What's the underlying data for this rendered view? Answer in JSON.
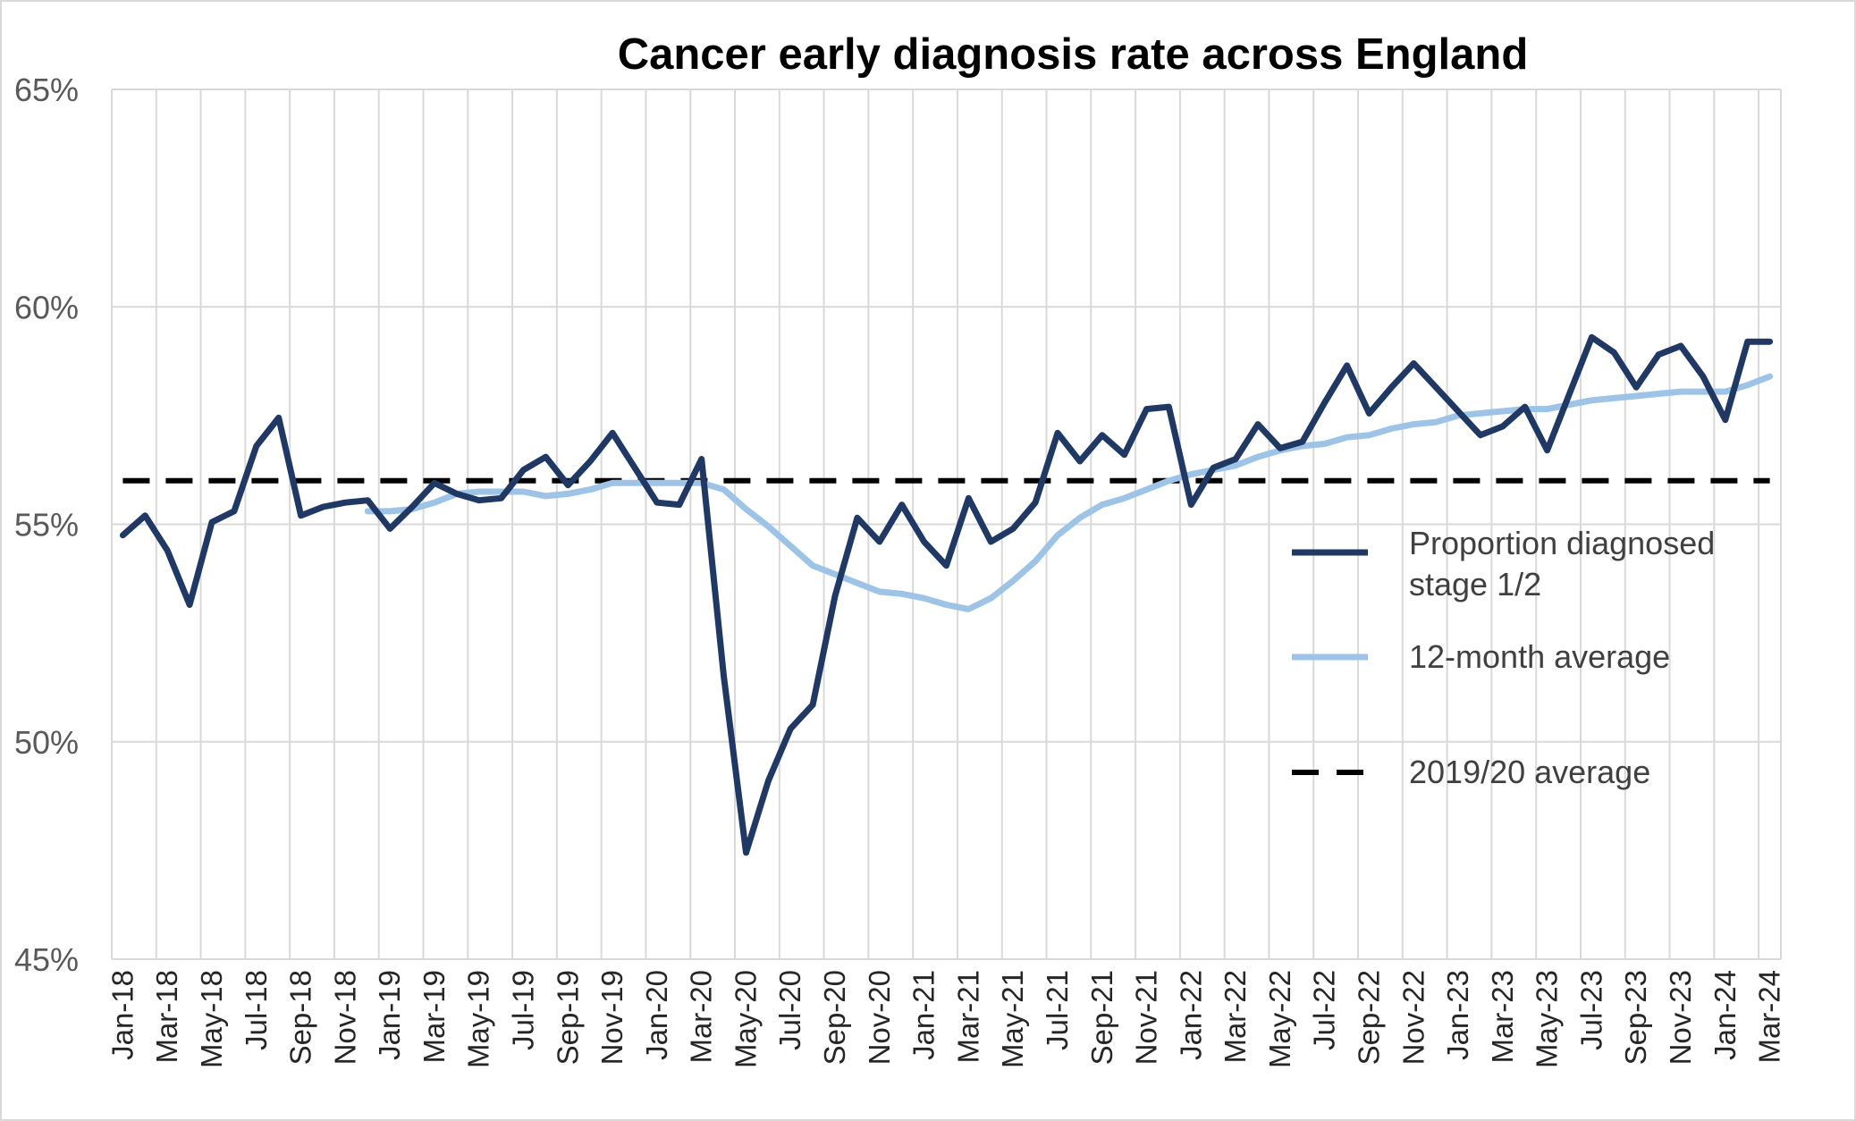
{
  "chart_data": {
    "type": "line",
    "title": "Cancer early diagnosis rate across England",
    "xlabel": "",
    "ylabel": "",
    "ylim": [
      45,
      65
    ],
    "y_ticks": [
      "45%",
      "50%",
      "55%",
      "60%",
      "65%"
    ],
    "y_tick_values": [
      45,
      50,
      55,
      60,
      65
    ],
    "x": [
      "Jan-18",
      "Feb-18",
      "Mar-18",
      "Apr-18",
      "May-18",
      "Jun-18",
      "Jul-18",
      "Aug-18",
      "Sep-18",
      "Oct-18",
      "Nov-18",
      "Dec-18",
      "Jan-19",
      "Feb-19",
      "Mar-19",
      "Apr-19",
      "May-19",
      "Jun-19",
      "Jul-19",
      "Aug-19",
      "Sep-19",
      "Oct-19",
      "Nov-19",
      "Dec-19",
      "Jan-20",
      "Feb-20",
      "Mar-20",
      "Apr-20",
      "May-20",
      "Jun-20",
      "Jul-20",
      "Aug-20",
      "Sep-20",
      "Oct-20",
      "Nov-20",
      "Dec-20",
      "Jan-21",
      "Feb-21",
      "Mar-21",
      "Apr-21",
      "May-21",
      "Jun-21",
      "Jul-21",
      "Aug-21",
      "Sep-21",
      "Oct-21",
      "Nov-21",
      "Dec-21",
      "Jan-22",
      "Feb-22",
      "Mar-22",
      "Apr-22",
      "May-22",
      "Jun-22",
      "Jul-22",
      "Aug-22",
      "Sep-22",
      "Oct-22",
      "Nov-22",
      "Dec-22",
      "Jan-23",
      "Feb-23",
      "Mar-23",
      "Apr-23",
      "May-23",
      "Jun-23",
      "Jul-23",
      "Aug-23",
      "Sep-23",
      "Oct-23",
      "Nov-23",
      "Dec-23",
      "Jan-24",
      "Feb-24",
      "Mar-24"
    ],
    "x_tick_labels": [
      "Jan-18",
      "Mar-18",
      "May-18",
      "Jul-18",
      "Sep-18",
      "Nov-18",
      "Jan-19",
      "Mar-19",
      "May-19",
      "Jul-19",
      "Sep-19",
      "Nov-19",
      "Jan-20",
      "Mar-20",
      "May-20",
      "Jul-20",
      "Sep-20",
      "Nov-20",
      "Jan-21",
      "Mar-21",
      "May-21",
      "Jul-21",
      "Sep-21",
      "Nov-21",
      "Jan-22",
      "Mar-22",
      "May-22",
      "Jul-22",
      "Sep-22",
      "Nov-22",
      "Jan-23",
      "Mar-23",
      "May-23",
      "Jul-23",
      "Sep-23",
      "Nov-23",
      "Jan-24",
      "Mar-24"
    ],
    "grid": true,
    "legend_position": "right",
    "series": [
      {
        "name": "Proportion diagnosed stage 1/2",
        "color": "#1f3864",
        "dash": "solid",
        "values": [
          54.75,
          55.2,
          54.4,
          53.15,
          55.05,
          55.3,
          56.8,
          57.45,
          55.2,
          55.4,
          55.5,
          55.55,
          54.9,
          55.4,
          55.95,
          55.7,
          55.55,
          55.6,
          56.25,
          56.55,
          55.9,
          56.45,
          57.1,
          56.3,
          55.5,
          55.45,
          56.5,
          51.5,
          47.45,
          49.1,
          50.3,
          50.85,
          53.35,
          55.15,
          54.6,
          55.45,
          54.6,
          54.05,
          55.6,
          54.6,
          54.9,
          55.5,
          57.1,
          56.45,
          57.05,
          56.6,
          57.65,
          57.7,
          55.45,
          56.3,
          56.5,
          57.3,
          56.75,
          56.9,
          57.8,
          58.65,
          57.55,
          58.15,
          58.7,
          58.15,
          57.6,
          57.05,
          57.25,
          57.7,
          56.7,
          58.0,
          59.3,
          58.95,
          58.15,
          58.9,
          59.1,
          58.4,
          57.4,
          59.2,
          59.2
        ]
      },
      {
        "name": "12-month average",
        "color": "#9dc3e6",
        "dash": "solid",
        "values": [
          null,
          null,
          null,
          null,
          null,
          null,
          null,
          null,
          null,
          null,
          null,
          55.3,
          55.3,
          55.35,
          55.5,
          55.7,
          55.75,
          55.75,
          55.75,
          55.65,
          55.7,
          55.8,
          55.95,
          55.95,
          55.95,
          55.95,
          55.95,
          55.8,
          55.35,
          54.95,
          54.5,
          54.05,
          53.85,
          53.65,
          53.45,
          53.4,
          53.3,
          53.15,
          53.05,
          53.3,
          53.7,
          54.15,
          54.75,
          55.15,
          55.45,
          55.6,
          55.8,
          56.0,
          56.15,
          56.25,
          56.35,
          56.55,
          56.7,
          56.8,
          56.85,
          57.0,
          57.05,
          57.2,
          57.3,
          57.35,
          57.5,
          57.55,
          57.6,
          57.65,
          57.65,
          57.75,
          57.85,
          57.9,
          57.95,
          58.0,
          58.05,
          58.05,
          58.05,
          58.2,
          58.4
        ]
      },
      {
        "name": "2019/20 average",
        "color": "#000000",
        "dash": "dashed",
        "values": [
          56.0,
          56.0,
          56.0,
          56.0,
          56.0,
          56.0,
          56.0,
          56.0,
          56.0,
          56.0,
          56.0,
          56.0,
          56.0,
          56.0,
          56.0,
          56.0,
          56.0,
          56.0,
          56.0,
          56.0,
          56.0,
          56.0,
          56.0,
          56.0,
          56.0,
          56.0,
          56.0,
          56.0,
          56.0,
          56.0,
          56.0,
          56.0,
          56.0,
          56.0,
          56.0,
          56.0,
          56.0,
          56.0,
          56.0,
          56.0,
          56.0,
          56.0,
          56.0,
          56.0,
          56.0,
          56.0,
          56.0,
          56.0,
          56.0,
          56.0,
          56.0,
          56.0,
          56.0,
          56.0,
          56.0,
          56.0,
          56.0,
          56.0,
          56.0,
          56.0,
          56.0,
          56.0,
          56.0,
          56.0,
          56.0,
          56.0,
          56.0,
          56.0,
          56.0,
          56.0,
          56.0,
          56.0,
          56.0,
          56.0,
          56.0
        ]
      }
    ],
    "legend": {
      "entries": [
        {
          "lines": [
            "Proportion diagnosed",
            "stage 1/2"
          ],
          "color": "#1f3864",
          "dash": "solid"
        },
        {
          "lines": [
            "12-month average"
          ],
          "color": "#9dc3e6",
          "dash": "solid"
        },
        {
          "lines": [
            "2019/20 average"
          ],
          "color": "#000000",
          "dash": "dashed"
        }
      ]
    }
  }
}
